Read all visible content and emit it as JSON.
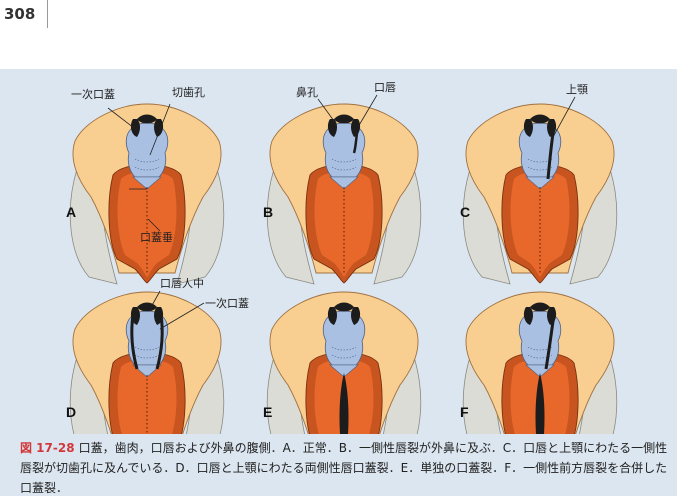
{
  "page_number": "308",
  "figure": {
    "panels": [
      {
        "id": "A",
        "letter": "A"
      },
      {
        "id": "B",
        "letter": "B"
      },
      {
        "id": "C",
        "letter": "C"
      },
      {
        "id": "D",
        "letter": "D"
      },
      {
        "id": "E",
        "letter": "E"
      },
      {
        "id": "F",
        "letter": "F"
      }
    ],
    "labels": {
      "primary_palate_a": "一次口蓋",
      "incisive_foramen": "切歯孔",
      "uvula": "口蓋垂",
      "nostril": "鼻孔",
      "lip": "口唇",
      "upper_jaw": "上顎",
      "philtrum": "口唇人中",
      "primary_palate_d": "一次口蓋"
    },
    "colors": {
      "panel_bg": "#dce6f0",
      "face": "#f8cf90",
      "tongue": "#e8672a",
      "palate": "#a9c0e3",
      "nose": "#1c1c1c",
      "tissue_gray": "#dcdcd6"
    }
  },
  "caption": {
    "label": "図 17-28",
    "text": "口蓋，歯肉，口唇および外鼻の腹側．A．正常．B．一側性唇裂が外鼻に及ぶ．C．口唇と上顎にわたる一側性唇裂が切歯孔に及んでいる．D．口唇と上顎にわたる両側性唇口蓋裂．E．単独の口蓋裂．F．一側性前方唇裂を合併した口蓋裂．"
  }
}
